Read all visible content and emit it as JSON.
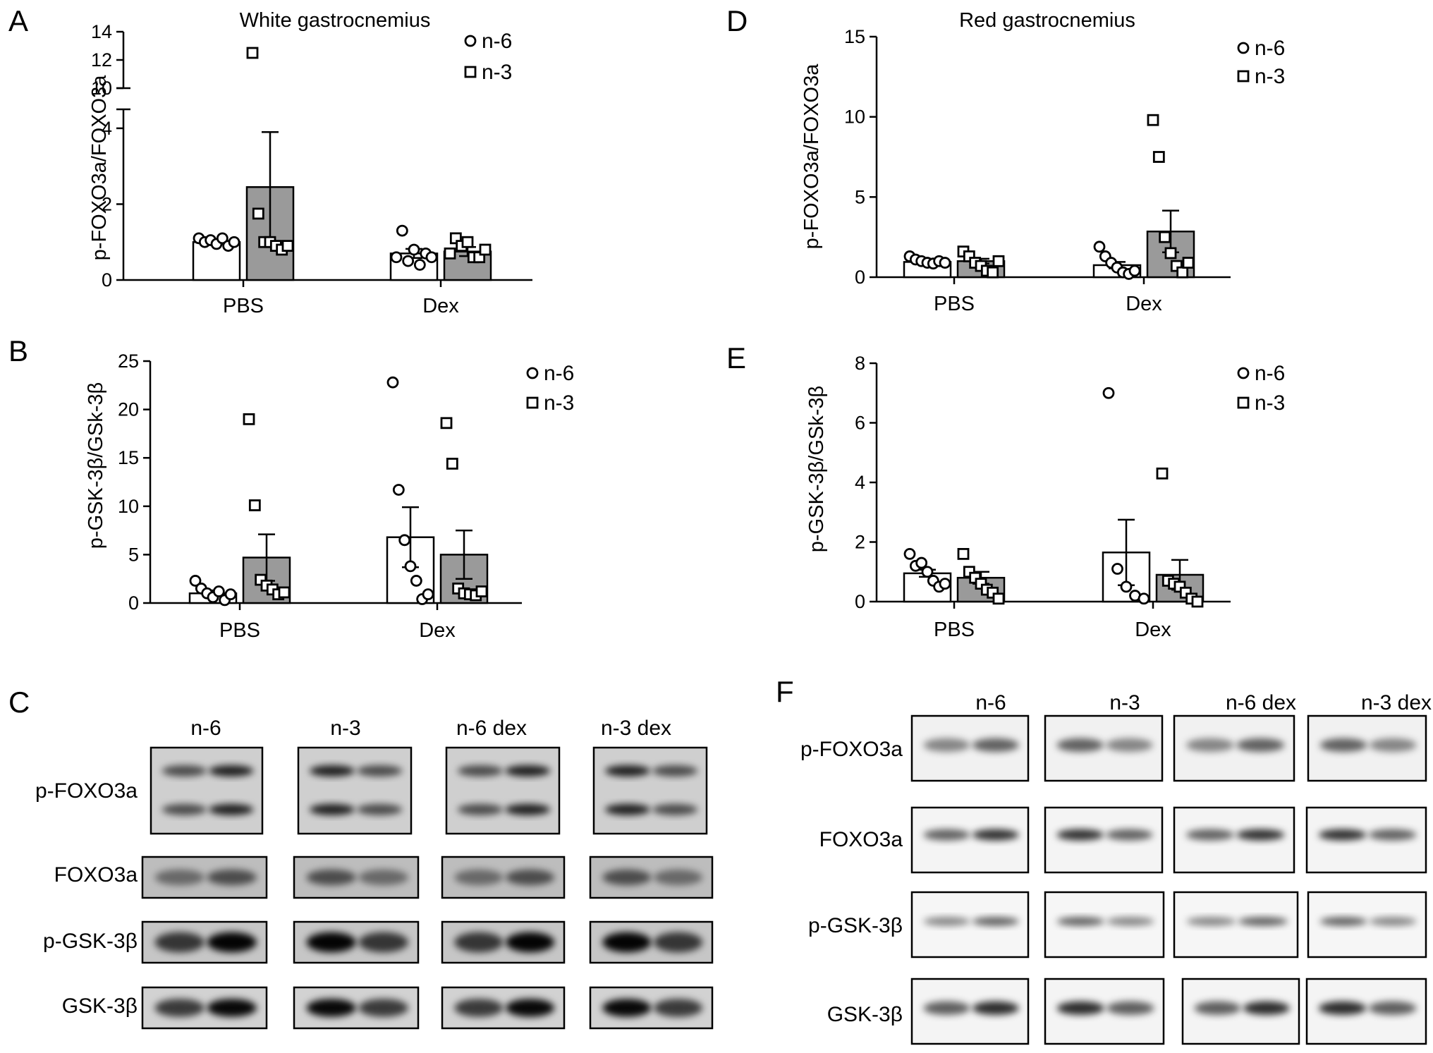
{
  "figure": {
    "panel_letters": [
      "A",
      "B",
      "C",
      "D",
      "E",
      "F"
    ]
  },
  "chart_data": [
    {
      "panel": "A",
      "type": "bar",
      "title": "White gastrocnemius",
      "ylabel": "p-FOXO3a/FOXO3a",
      "categories": [
        "PBS",
        "Dex"
      ],
      "ylim": [
        0,
        14
      ],
      "axis_break": [
        4.5,
        10
      ],
      "yticks": [
        0,
        2,
        4,
        10,
        12,
        14
      ],
      "series": [
        {
          "name": "n-6",
          "fill": "#ffffff",
          "marker": "circle",
          "means": [
            1.0,
            0.7
          ],
          "sem": [
            0.05,
            0.12
          ],
          "points": [
            [
              1.1,
              1.0,
              1.05,
              0.95,
              1.1,
              0.9,
              1.0
            ],
            [
              0.6,
              1.3,
              0.5,
              0.8,
              0.4,
              0.7,
              0.6
            ]
          ]
        },
        {
          "name": "n-3",
          "fill": "#9a9a9a",
          "marker": "square",
          "means": [
            2.45,
            0.75
          ],
          "sem": [
            1.45,
            0.12
          ],
          "points": [
            [
              12.5,
              1.75,
              1.0,
              1.0,
              0.9,
              0.8,
              0.9
            ],
            [
              0.7,
              1.1,
              0.9,
              1.0,
              0.6,
              0.6,
              0.8
            ]
          ]
        }
      ],
      "legend": "top-right"
    },
    {
      "panel": "B",
      "type": "bar",
      "title": "",
      "ylabel": "p-GSK-3β/GSk-3β",
      "categories": [
        "PBS",
        "Dex"
      ],
      "ylim": [
        0,
        25
      ],
      "yticks": [
        0,
        5,
        10,
        15,
        20,
        25
      ],
      "series": [
        {
          "name": "n-6",
          "fill": "#ffffff",
          "marker": "circle",
          "means": [
            1.0,
            6.8
          ],
          "sem": [
            0.3,
            3.1
          ],
          "points": [
            [
              2.3,
              1.5,
              1.0,
              0.6,
              1.2,
              0.3,
              0.9
            ],
            [
              22.8,
              11.7,
              6.5,
              3.8,
              2.3,
              0.4,
              0.9
            ]
          ]
        },
        {
          "name": "n-3",
          "fill": "#9a9a9a",
          "marker": "square",
          "means": [
            4.7,
            5.0
          ],
          "sem": [
            2.4,
            2.5
          ],
          "points": [
            [
              19.0,
              10.1,
              2.4,
              1.8,
              1.4,
              0.9,
              1.1
            ],
            [
              18.6,
              14.4,
              1.5,
              1.0,
              0.9,
              0.8,
              1.2
            ]
          ]
        }
      ],
      "legend": "top-right"
    },
    {
      "panel": "D",
      "type": "bar",
      "title": "Red gastrocnemius",
      "ylabel": "p-FOXO3a/FOXO3a",
      "categories": [
        "PBS",
        "Dex"
      ],
      "ylim": [
        0,
        15
      ],
      "yticks": [
        0,
        5,
        10,
        15
      ],
      "series": [
        {
          "name": "n-6",
          "fill": "#ffffff",
          "marker": "circle",
          "means": [
            0.95,
            0.75
          ],
          "sem": [
            0.08,
            0.2
          ],
          "points": [
            [
              1.3,
              1.1,
              1.0,
              0.9,
              0.85,
              1.0,
              0.9
            ],
            [
              1.9,
              1.3,
              0.9,
              0.6,
              0.3,
              0.2,
              0.4
            ]
          ]
        },
        {
          "name": "n-3",
          "fill": "#9a9a9a",
          "marker": "square",
          "means": [
            1.0,
            2.85
          ],
          "sem": [
            0.15,
            1.3
          ],
          "points": [
            [
              1.6,
              1.3,
              0.9,
              0.7,
              0.4,
              0.3,
              1.0
            ],
            [
              9.8,
              7.5,
              2.5,
              1.5,
              0.7,
              0.3,
              0.9
            ]
          ]
        }
      ],
      "legend": "top-right"
    },
    {
      "panel": "E",
      "type": "bar",
      "title": "",
      "ylabel": "p-GSK-3β/GSk-3β",
      "categories": [
        "PBS",
        "Dex"
      ],
      "ylim": [
        0,
        8
      ],
      "yticks": [
        0,
        2,
        4,
        6,
        8
      ],
      "series": [
        {
          "name": "n-6",
          "fill": "#ffffff",
          "marker": "circle",
          "means": [
            0.95,
            1.65
          ],
          "sem": [
            0.12,
            1.1
          ],
          "points": [
            [
              1.6,
              1.2,
              1.3,
              1.0,
              0.7,
              0.5,
              0.6
            ],
            [
              7.0,
              1.1,
              0.5,
              0.2,
              0.1
            ]
          ]
        },
        {
          "name": "n-3",
          "fill": "#9a9a9a",
          "marker": "square",
          "means": [
            0.8,
            0.9
          ],
          "sem": [
            0.2,
            0.5
          ],
          "points": [
            [
              1.6,
              1.0,
              0.8,
              0.6,
              0.4,
              0.3,
              0.1
            ],
            [
              4.3,
              0.7,
              0.6,
              0.5,
              0.3,
              0.1,
              0.0
            ]
          ]
        }
      ],
      "legend": "top-right"
    }
  ],
  "blots": [
    {
      "panel": "C",
      "groups": [
        "n-6",
        "n-3",
        "n-6 dex",
        "n-3 dex"
      ],
      "rows": [
        "p-FOXO3a",
        "FOXO3a",
        "p-GSK-3β",
        "GSK-3β"
      ]
    },
    {
      "panel": "F",
      "groups": [
        "n-6",
        "n-3",
        "n-6 dex",
        "n-3 dex"
      ],
      "rows": [
        "p-FOXO3a",
        "FOXO3a",
        "p-GSK-3β",
        "GSK-3β"
      ]
    }
  ]
}
